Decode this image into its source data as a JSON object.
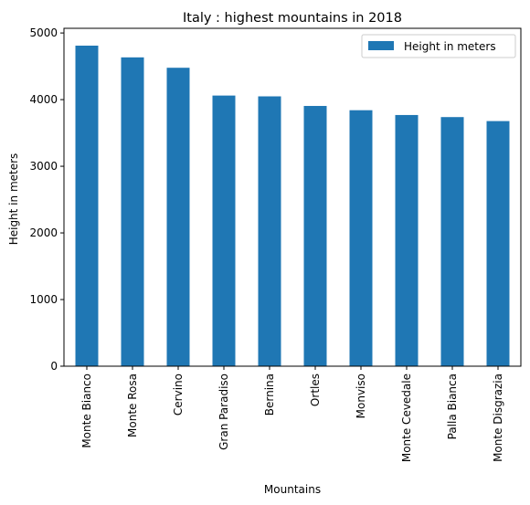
{
  "chart_data": {
    "type": "bar",
    "title": "Italy : highest mountains in 2018",
    "xlabel": "Mountains",
    "ylabel": "Height in meters",
    "categories": [
      "Monte Bianco",
      "Monte Rosa",
      "Cervino",
      "Gran Paradiso",
      "Bernina",
      "Ortles",
      "Monviso",
      "Monte Cevedale",
      "Palla Bianca",
      "Monte Disgrazia"
    ],
    "series": [
      {
        "name": "Height in meters",
        "values": [
          4810,
          4634,
          4478,
          4061,
          4049,
          3905,
          3841,
          3769,
          3738,
          3678
        ],
        "color": "#1f77b4"
      }
    ],
    "ylim": [
      0,
      5000
    ],
    "yticks": [
      0,
      1000,
      2000,
      3000,
      4000,
      5000
    ],
    "grid": false,
    "legend": "top-right"
  }
}
